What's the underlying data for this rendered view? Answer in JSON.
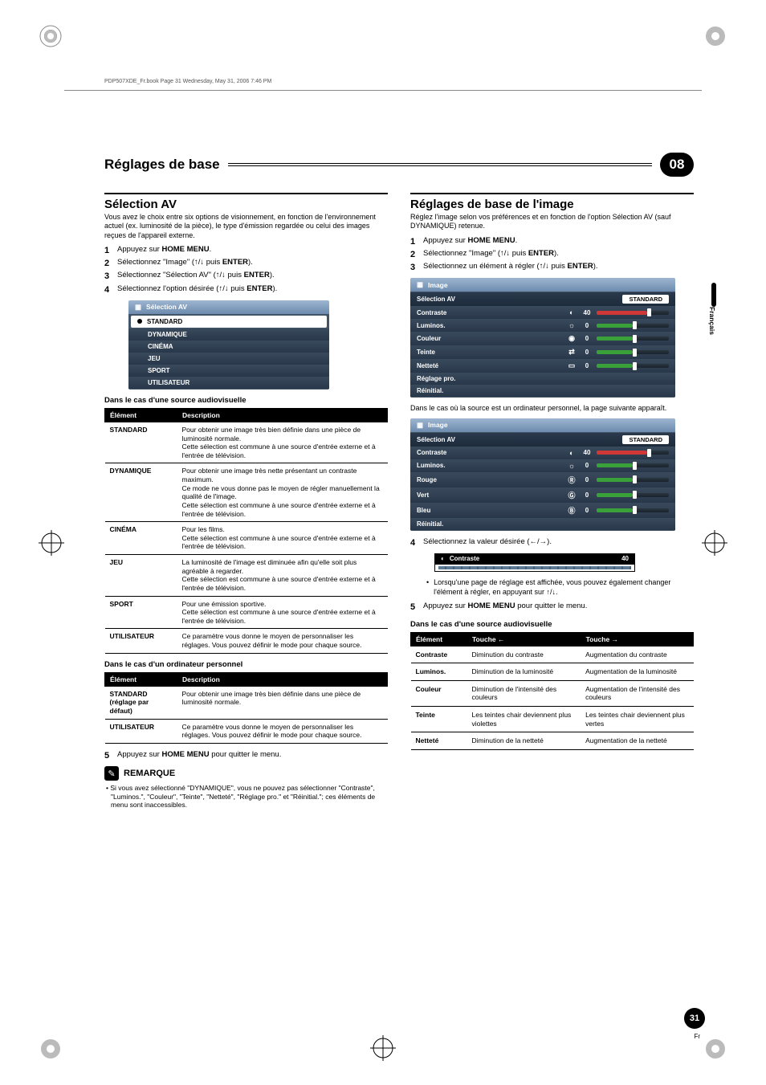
{
  "meta": {
    "header_line": "PDP507XDE_Fr.book  Page 31  Wednesday, May 31, 2006  7:46 PM",
    "chapter_title": "Réglages de base",
    "chapter_num": "08",
    "side_tab": "Français",
    "page_num": "31",
    "page_lang": "Fr"
  },
  "left": {
    "h2": "Sélection AV",
    "intro": "Vous avez le choix entre six options de visionnement, en fonction de l'environnement actuel (ex. luminosité de la pièce), le type d'émission regardée ou celui des images reçues de l'appareil externe.",
    "steps": [
      {
        "n": "1",
        "t": "Appuyez sur ",
        "b": "HOME MENU",
        "a": "."
      },
      {
        "n": "2",
        "t": "Sélectionnez \"Image\" (↑/↓ puis ",
        "b": "ENTER",
        "a": ")."
      },
      {
        "n": "3",
        "t": "Sélectionnez \"Sélection AV\" (↑/↓ puis ",
        "b": "ENTER",
        "a": ")."
      },
      {
        "n": "4",
        "t": "Sélectionnez l'option désirée (↑/↓ puis ",
        "b": "ENTER",
        "a": ")."
      }
    ],
    "menu_title": "Sélection AV",
    "menu_items": [
      "STANDARD",
      "DYNAMIQUE",
      "CINÉMA",
      "JEU",
      "SPORT",
      "UTILISATEUR"
    ],
    "subhead1": "Dans le cas d'une source audiovisuelle",
    "table1_hdr": [
      "Élément",
      "Description"
    ],
    "table1": [
      [
        "STANDARD",
        "Pour obtenir une image très bien définie dans une pièce de luminosité normale.\nCette sélection est commune à une source d'entrée externe et à l'entrée de télévision."
      ],
      [
        "DYNAMIQUE",
        "Pour obtenir une image très nette présentant un contraste maximum.\nCe mode ne vous donne pas le moyen de régler manuellement la qualité de l'image.\nCette sélection est commune à une source d'entrée externe et à l'entrée de télévision."
      ],
      [
        "CINÉMA",
        "Pour les films.\nCette sélection est commune à une source d'entrée externe et à l'entrée de télévision."
      ],
      [
        "JEU",
        "La luminosité de l'image est diminuée afin qu'elle soit plus agréable à regarder.\nCette sélection est commune à une source d'entrée externe et à l'entrée de télévision."
      ],
      [
        "SPORT",
        "Pour une émission sportive.\nCette sélection est commune à une source d'entrée externe et à l'entrée de télévision."
      ],
      [
        "UTILISATEUR",
        "Ce paramètre vous donne le moyen de personnaliser les réglages. Vous pouvez définir le mode pour chaque source."
      ]
    ],
    "subhead2": "Dans le cas d'un ordinateur personnel",
    "table2_hdr": [
      "Élément",
      "Description"
    ],
    "table2": [
      [
        "STANDARD (réglage par défaut)",
        "Pour obtenir une image très bien définie dans une pièce de luminosité normale."
      ],
      [
        "UTILISATEUR",
        "Ce paramètre vous donne le moyen de personnaliser les réglages. Vous pouvez définir le mode pour chaque source."
      ]
    ],
    "step5": {
      "n": "5",
      "t": "Appuyez sur ",
      "b": "HOME MENU",
      "a": " pour quitter le menu."
    },
    "note_label": "REMARQUE",
    "note_text": "• Si vous avez sélectionné \"DYNAMIQUE\", vous ne pouvez pas sélectionner \"Contraste\", \"Luminos.\", \"Couleur\", \"Teinte\", \"Netteté\", \"Réglage pro.\" et \"Réinitial.\"; ces éléments de menu sont inaccessibles."
  },
  "right": {
    "h2": "Réglages de base de l'image",
    "intro": "Réglez l'image selon vos préférences et en fonction de l'option Sélection AV (sauf DYNAMIQUE) retenue.",
    "steps": [
      {
        "n": "1",
        "t": "Appuyez sur ",
        "b": "HOME MENU",
        "a": "."
      },
      {
        "n": "2",
        "t": "Sélectionnez \"Image\" (↑/↓ puis ",
        "b": "ENTER",
        "a": ")."
      },
      {
        "n": "3",
        "t": "Sélectionnez un élément à régler (↑/↓ puis ",
        "b": "ENTER",
        "a": ")."
      }
    ],
    "menu1_title": "Image",
    "standard_badge": "STANDARD",
    "menu1": [
      {
        "label": "Sélection AV",
        "icon": "",
        "badge": true
      },
      {
        "label": "Contraste",
        "icon": "◐",
        "val": "40",
        "fill": 70,
        "color": "#d03838"
      },
      {
        "label": "Luminos.",
        "icon": "☼",
        "val": "0",
        "fill": 50,
        "color": "#3aa03a"
      },
      {
        "label": "Couleur",
        "icon": "◉",
        "val": "0",
        "fill": 50,
        "color": "#3aa03a"
      },
      {
        "label": "Teinte",
        "icon": "⇄",
        "val": "0",
        "fill": 50,
        "color": "#3aa03a"
      },
      {
        "label": "Netteté",
        "icon": "▭",
        "val": "0",
        "fill": 50,
        "color": "#3aa03a"
      },
      {
        "label": "Réglage pro.",
        "icon": ""
      },
      {
        "label": "Réinitial.",
        "icon": ""
      }
    ],
    "between": "Dans le cas où la source est un ordinateur personnel, la page suivante apparaît.",
    "menu2_title": "Image",
    "menu2": [
      {
        "label": "Sélection AV",
        "icon": "",
        "badge": true
      },
      {
        "label": "Contraste",
        "icon": "◐",
        "val": "40",
        "fill": 70,
        "color": "#d03838"
      },
      {
        "label": "Luminos.",
        "icon": "☼",
        "val": "0",
        "fill": 50,
        "color": "#3aa03a"
      },
      {
        "label": "Rouge",
        "icon": "Ⓡ",
        "val": "0",
        "fill": 50,
        "color": "#3aa03a"
      },
      {
        "label": "Vert",
        "icon": "Ⓖ",
        "val": "0",
        "fill": 50,
        "color": "#3aa03a"
      },
      {
        "label": "Bleu",
        "icon": "Ⓑ",
        "val": "0",
        "fill": 50,
        "color": "#3aa03a"
      },
      {
        "label": "Réinitial.",
        "icon": ""
      }
    ],
    "step4": {
      "n": "4",
      "t": "Sélectionnez la valeur désirée (←/→)."
    },
    "mini_label": "Contraste",
    "mini_val": "40",
    "bullet": "Lorsqu'une page de réglage est affichée, vous pouvez également changer l'élément à régler, en appuyant sur ↑/↓.",
    "step5": {
      "n": "5",
      "t": "Appuyez sur ",
      "b": "HOME MENU",
      "a": " pour quitter le menu."
    },
    "subhead": "Dans le cas d'une source audiovisuelle",
    "adj_hdr": [
      "Élément",
      "Touche ←",
      "Touche →"
    ],
    "adj": [
      [
        "Contraste",
        "Diminution du contraste",
        "Augmentation du contraste"
      ],
      [
        "Luminos.",
        "Diminution de la luminosité",
        "Augmentation de la luminosité"
      ],
      [
        "Couleur",
        "Diminution de l'intensité des couleurs",
        "Augmentation de l'intensité des couleurs"
      ],
      [
        "Teinte",
        "Les teintes chair deviennent plus violettes",
        "Les teintes chair deviennent plus vertes"
      ],
      [
        "Netteté",
        "Diminution de la netteté",
        "Augmentation de la netteté"
      ]
    ]
  },
  "colors": {
    "slider_red": "#d03838",
    "slider_green": "#3aa03a",
    "menu_dark": "#2f4256",
    "menu_light": "#7d98b5"
  }
}
